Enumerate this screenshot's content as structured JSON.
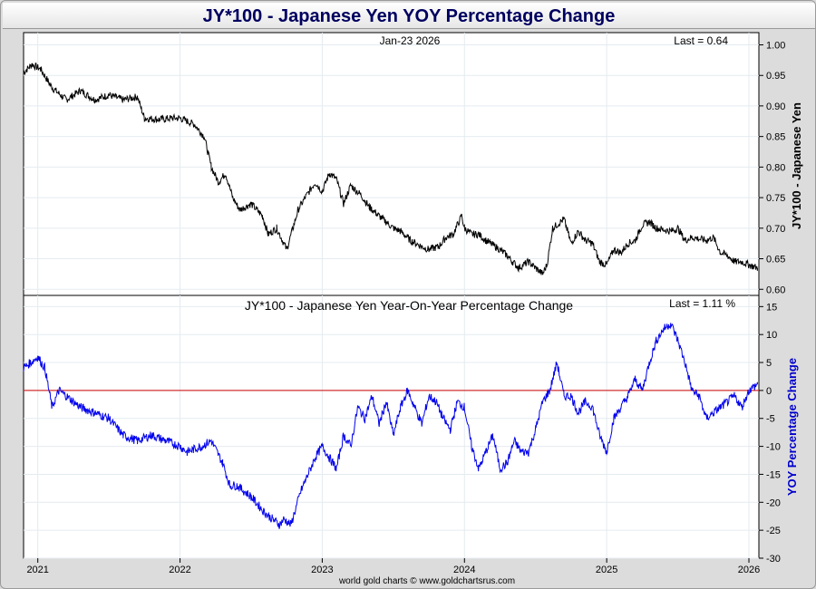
{
  "title": "JY*100  -  Japanese Yen YOY Percentage Change",
  "footer": "world gold charts © www.goldchartsrus.com",
  "colors": {
    "price": "#000000",
    "yoy": "#0000ee",
    "zero_line": "#cc0000",
    "title": "#000060",
    "yoy_axis": "#0000cc"
  },
  "chart_data": [
    {
      "type": "line",
      "title": "",
      "date_label": "Jan-23  2026",
      "last_label": "Last = 0.64",
      "ylabel": "JY*100  -  Japanese Yen",
      "ylim": [
        0.59,
        1.02
      ],
      "yticks": [
        "1.00",
        "0.95",
        "0.90",
        "0.85",
        "0.80",
        "0.75",
        "0.70",
        "0.65",
        "0.60"
      ],
      "series": [
        {
          "name": "JY*100",
          "x": [
            2020.9,
            2020.96,
            2021.02,
            2021.1,
            2021.2,
            2021.3,
            2021.4,
            2021.5,
            2021.6,
            2021.7,
            2021.75,
            2021.85,
            2021.95,
            2022.0,
            2022.1,
            2022.17,
            2022.22,
            2022.27,
            2022.32,
            2022.37,
            2022.42,
            2022.5,
            2022.58,
            2022.62,
            2022.68,
            2022.75,
            2022.8,
            2022.83,
            2022.88,
            2022.95,
            2023.0,
            2023.05,
            2023.1,
            2023.15,
            2023.2,
            2023.27,
            2023.33,
            2023.4,
            2023.45,
            2023.5,
            2023.55,
            2023.62,
            2023.7,
            2023.75,
            2023.82,
            2023.87,
            2023.92,
            2023.98,
            2024.0,
            2024.05,
            2024.1,
            2024.15,
            2024.25,
            2024.3,
            2024.38,
            2024.45,
            2024.5,
            2024.55,
            2024.58,
            2024.62,
            2024.7,
            2024.75,
            2024.8,
            2024.85,
            2024.9,
            2024.95,
            2025.0,
            2025.05,
            2025.1,
            2025.15,
            2025.2,
            2025.25,
            2025.3,
            2025.35,
            2025.45,
            2025.5,
            2025.55,
            2025.6,
            2025.7,
            2025.75,
            2025.8,
            2025.85,
            2025.9,
            2025.95,
            2026.0,
            2026.06
          ],
          "values": [
            0.955,
            0.968,
            0.96,
            0.93,
            0.91,
            0.925,
            0.91,
            0.918,
            0.91,
            0.915,
            0.88,
            0.878,
            0.88,
            0.88,
            0.87,
            0.85,
            0.8,
            0.775,
            0.79,
            0.75,
            0.73,
            0.74,
            0.72,
            0.69,
            0.7,
            0.665,
            0.705,
            0.73,
            0.75,
            0.775,
            0.76,
            0.79,
            0.78,
            0.74,
            0.77,
            0.755,
            0.735,
            0.72,
            0.71,
            0.7,
            0.695,
            0.68,
            0.67,
            0.665,
            0.67,
            0.685,
            0.69,
            0.72,
            0.7,
            0.69,
            0.69,
            0.68,
            0.665,
            0.655,
            0.635,
            0.645,
            0.635,
            0.625,
            0.64,
            0.7,
            0.715,
            0.675,
            0.695,
            0.68,
            0.675,
            0.645,
            0.64,
            0.665,
            0.66,
            0.675,
            0.68,
            0.705,
            0.71,
            0.7,
            0.695,
            0.7,
            0.68,
            0.685,
            0.68,
            0.685,
            0.66,
            0.655,
            0.645,
            0.645,
            0.64,
            0.635
          ]
        }
      ]
    },
    {
      "type": "line",
      "title": "JY*100  -  Japanese Yen Year-On-Year Percentage Change",
      "last_label": "Last = 1.11 %",
      "ylabel": "YOY Percentage Change",
      "ylim": [
        -30,
        17
      ],
      "yticks": [
        "15",
        "10",
        "5",
        "0",
        "-5",
        "-10",
        "-15",
        "-20",
        "-25",
        "-30"
      ],
      "x_ticks": [
        "2021",
        "2022",
        "2023",
        "2024",
        "2025",
        "2026"
      ],
      "x_tick_values": [
        2021,
        2022,
        2023,
        2024,
        2025,
        2026
      ],
      "reference_line": 0,
      "series": [
        {
          "name": "YOY %",
          "x": [
            2020.9,
            2020.95,
            2021.0,
            2021.05,
            2021.1,
            2021.15,
            2021.2,
            2021.25,
            2021.3,
            2021.4,
            2021.5,
            2021.6,
            2021.7,
            2021.8,
            2021.9,
            2022.0,
            2022.05,
            2022.15,
            2022.22,
            2022.3,
            2022.35,
            2022.4,
            2022.5,
            2022.6,
            2022.65,
            2022.7,
            2022.73,
            2022.78,
            2022.85,
            2022.9,
            2022.95,
            2023.0,
            2023.05,
            2023.1,
            2023.15,
            2023.2,
            2023.25,
            2023.3,
            2023.35,
            2023.4,
            2023.45,
            2023.5,
            2023.55,
            2023.6,
            2023.65,
            2023.7,
            2023.75,
            2023.8,
            2023.85,
            2023.9,
            2023.95,
            2024.0,
            2024.05,
            2024.1,
            2024.15,
            2024.2,
            2024.25,
            2024.3,
            2024.35,
            2024.4,
            2024.45,
            2024.5,
            2024.55,
            2024.6,
            2024.65,
            2024.7,
            2024.75,
            2024.8,
            2024.85,
            2024.9,
            2024.95,
            2025.0,
            2025.05,
            2025.1,
            2025.15,
            2025.2,
            2025.25,
            2025.3,
            2025.35,
            2025.4,
            2025.45,
            2025.5,
            2025.55,
            2025.6,
            2025.65,
            2025.7,
            2025.75,
            2025.8,
            2025.85,
            2025.9,
            2025.95,
            2026.0,
            2026.06
          ],
          "values": [
            4,
            5,
            6,
            4,
            -3,
            0,
            -1,
            -2,
            -3,
            -4,
            -5,
            -8,
            -9,
            -8,
            -9,
            -10,
            -11,
            -10,
            -9,
            -13,
            -17,
            -17,
            -19,
            -22,
            -23,
            -24,
            -23,
            -24,
            -18,
            -15,
            -12,
            -10,
            -12,
            -14,
            -8,
            -10,
            -3,
            -5,
            -1,
            -6,
            -2,
            -8,
            -3,
            0,
            -3,
            -6,
            -1,
            -2,
            -5,
            -7,
            -2,
            -3,
            -10,
            -14,
            -11,
            -8,
            -14,
            -13,
            -9,
            -11,
            -11,
            -7,
            -2,
            0,
            5,
            -1,
            -1,
            -4,
            -2,
            -3,
            -8,
            -11,
            -5,
            -3,
            -1,
            2,
            0,
            5,
            9,
            11,
            12,
            9,
            5,
            0,
            -1,
            -5,
            -4,
            -3,
            -2,
            -1,
            -3,
            0,
            1.11
          ]
        }
      ]
    }
  ]
}
